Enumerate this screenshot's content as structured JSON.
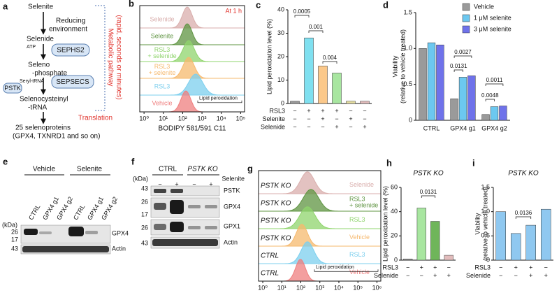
{
  "panel_a": {
    "label": "a",
    "selenite": "Selenite",
    "reducing": [
      "Reducing",
      "environment"
    ],
    "selenide": "Selenide",
    "atp": "ATP",
    "sephs2": "SEPHS2",
    "selenophosphate": [
      "Seleno",
      "-phosphate"
    ],
    "seryl_trna": "Seryl-tRNA",
    "pstk": "PSTK",
    "sepsecs": "SEPSECS",
    "selenocysteinyl": [
      "Selenocysteinyl",
      "-tRNA"
    ],
    "products": [
      "25 selenoproteins",
      "(GPX4, TXNRD1 and so on)"
    ],
    "metabolic": [
      "Metabolic pathway",
      "(rapid, seconds or minutes)"
    ],
    "translation": "Translation"
  },
  "panel_b": {
    "type": "histogram",
    "label": "b",
    "time": "At 1 h",
    "gate": "Lipid peroxidation",
    "xlabel": "BODIPY 581/591 C11",
    "log": true,
    "xlim": [
      0.6,
      160000
    ],
    "xticks": [
      {
        "value": 1,
        "label": "10⁰"
      },
      {
        "value": 10,
        "label": "10¹"
      },
      {
        "value": 100,
        "label": "10²"
      },
      {
        "value": 1000,
        "label": "10³"
      },
      {
        "value": 10000,
        "label": "10⁴"
      },
      {
        "value": 100000,
        "label": "10⁵"
      }
    ],
    "samples": [
      {
        "name": [
          "Selenide"
        ],
        "color": "#d9aeac"
      },
      {
        "name": [
          "Selenite"
        ],
        "color": "#5f9442"
      },
      {
        "name": [
          "RSL3",
          "+ selenide"
        ],
        "color": "#8fd46c"
      },
      {
        "name": [
          "RSL3",
          "+ selenite"
        ],
        "color": "#f6b96e"
      },
      {
        "name": [
          "RSL3"
        ],
        "color": "#7ccfee"
      },
      {
        "name": [
          "Vehicle"
        ],
        "color": "#ef7f7f"
      }
    ]
  },
  "panel_c": {
    "type": "bar",
    "label": "c",
    "ylabel": [
      "Lipid peroxidation level (%)"
    ],
    "ylim": [
      0,
      40
    ],
    "yticks": [
      0,
      10,
      20,
      30,
      40
    ],
    "values": [
      1,
      28,
      16,
      13,
      1,
      1
    ],
    "colors": [
      "#9a9a9a",
      "#7fe0f0",
      "#fbc88a",
      "#a8e6a0",
      "#e6dea0",
      "#e2bcbc"
    ],
    "rows": [
      {
        "name": "RSL3",
        "signs": [
          "−",
          "+",
          "+",
          "+",
          "−",
          "−"
        ]
      },
      {
        "name": "Selenite",
        "signs": [
          "−",
          "−",
          "+",
          "−",
          "+",
          "−"
        ]
      },
      {
        "name": "Selenide",
        "signs": [
          "−",
          "−",
          "−",
          "+",
          "−",
          "+"
        ]
      }
    ],
    "pvalues": [
      "0.0005",
      "0.001",
      "0.004"
    ]
  },
  "panel_d": {
    "type": "grouped_bar",
    "label": "d",
    "ylabel": [
      "Viability",
      "(relative to vehicle treated)"
    ],
    "ylim": [
      0,
      1.5
    ],
    "yticks": [
      0,
      0.5,
      {
        "value": 1,
        "label": "1.0"
      },
      1.5
    ],
    "categories": [
      "CTRL",
      "GPX4 g1",
      "GPX4 g2"
    ],
    "series": [
      {
        "name": "Vehicle",
        "color": "#9a9a9a",
        "values": [
          1.0,
          0.3,
          0.08
        ]
      },
      {
        "name": "1 μM selenite",
        "color": "#6cc8f0",
        "values": [
          1.08,
          0.6,
          0.19
        ]
      },
      {
        "name": "3 μM selenite",
        "color": "#6f72ea",
        "values": [
          1.05,
          0.62,
          0.2
        ]
      }
    ],
    "pvalues": [
      "0.0027",
      "0.0131",
      "0.0011",
      "0.0048"
    ]
  },
  "panel_e": {
    "label": "e",
    "groups": [
      "Vehicle",
      "Selenite"
    ],
    "lanes": [
      "CTRL",
      "GPX4 g1",
      "GPX4 g2",
      "CTRL",
      "GPX4 g1",
      "GPX4 g2"
    ],
    "kda": "(kDa)",
    "markers": [
      "26",
      "17",
      "43"
    ],
    "proteins": [
      "GPX4",
      "Actin"
    ]
  },
  "panel_f": {
    "label": "f",
    "groups": [
      "CTRL",
      "PSTK KO"
    ],
    "kda": "(kDa)",
    "treatment": "Selenite",
    "signs": [
      "−",
      "+",
      "−",
      "+"
    ],
    "markers": [
      "43",
      "26",
      "17",
      "26",
      "43"
    ],
    "proteins": [
      "PSTK",
      "GPX4",
      "GPX1",
      "Actin"
    ]
  },
  "panel_g": {
    "type": "histogram",
    "label": "g",
    "gate": "Lipid peroxidation",
    "log": true,
    "xlim": [
      0.6,
      1600000
    ],
    "xticks": [
      {
        "value": 1,
        "label": "10⁰"
      },
      {
        "value": 10,
        "label": "10¹"
      },
      {
        "value": 100,
        "label": "10²"
      },
      {
        "value": 1000,
        "label": "10³"
      },
      {
        "value": 10000,
        "label": "10⁴"
      },
      {
        "value": 100000,
        "label": "10⁵"
      },
      {
        "value": 1000000,
        "label": "10⁶"
      }
    ],
    "samples": [
      {
        "genotype": "PSTK KO",
        "name": [
          "Selenide"
        ],
        "color": "#d9aeac"
      },
      {
        "genotype": "PSTK KO",
        "name": [
          "RSL3",
          "+ selenide"
        ],
        "color": "#5f9442"
      },
      {
        "genotype": "PSTK KO",
        "name": [
          "RSL3"
        ],
        "color": "#8fd46c"
      },
      {
        "genotype": "PSTK KO",
        "name": [
          "Vehicle"
        ],
        "color": "#f6b96e"
      },
      {
        "genotype": "CTRL",
        "name": [
          "RSL3"
        ],
        "color": "#7ccfee"
      },
      {
        "genotype": "CTRL",
        "name": [
          "Vehicle"
        ],
        "color": "#ef7f7f"
      }
    ]
  },
  "panel_h": {
    "type": "bar",
    "label": "h",
    "title": "PSTK KO",
    "ylabel": [
      "Lipid peroxidation level (%)"
    ],
    "ylim": [
      0,
      60
    ],
    "yticks": [
      0,
      20,
      40,
      60
    ],
    "values": [
      1,
      43,
      32,
      4
    ],
    "colors": [
      "#9a9a9a",
      "#a8e6a0",
      "#6fb55a",
      "#e2bcbc"
    ],
    "rows": [
      {
        "name": "RSL3",
        "signs": [
          "−",
          "+",
          "+",
          "−"
        ]
      },
      {
        "name": "Selenide",
        "signs": [
          "−",
          "−",
          "+",
          "+"
        ]
      }
    ],
    "pvalues": [
      "0.0131"
    ]
  },
  "panel_i": {
    "type": "bar",
    "label": "i",
    "title": "PSTK KO",
    "ylabel": [
      "Viability",
      "(relative to vehicle treated)"
    ],
    "ylim": [
      0,
      1.5
    ],
    "yticks": [
      0,
      0.5,
      {
        "value": 1,
        "label": "1.0"
      },
      1.5
    ],
    "values": [
      1.0,
      0.55,
      0.72,
      1.05
    ],
    "colors": [
      "#8fc8f0",
      "#8fc8f0",
      "#8fc8f0",
      "#8fc8f0"
    ],
    "rows": [
      {
        "name": "RSL3",
        "signs": [
          "−",
          "+",
          "+",
          "−"
        ]
      },
      {
        "name": "Selenide",
        "signs": [
          "−",
          "−",
          "+",
          "+"
        ]
      }
    ],
    "pvalues": [
      "0.0136"
    ]
  }
}
